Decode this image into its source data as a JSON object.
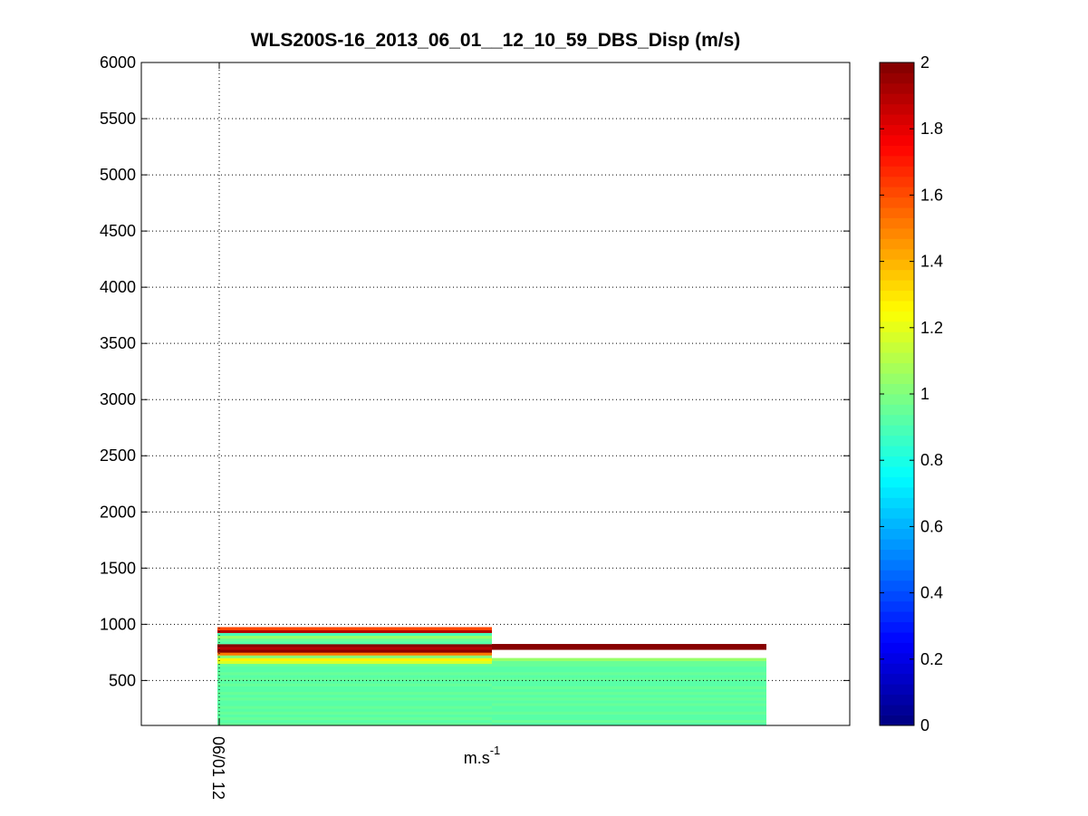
{
  "chart_data": {
    "type": "heatmap",
    "title": "WLS200S-16_2013_06_01__12_10_59_DBS_Disp (m/s)",
    "xlabel": "m.s",
    "xlabel_superscript": "-1",
    "ylabel": "",
    "x_tick_labels": [
      "06/01 12"
    ],
    "xlim": [
      0,
      2.28
    ],
    "y_ticks": [
      500,
      1000,
      1500,
      2000,
      2500,
      3000,
      3500,
      4000,
      4500,
      5000,
      5500,
      6000
    ],
    "ylim": [
      100,
      6000
    ],
    "grid": true,
    "colormap": "jet",
    "colorbar": {
      "clim": [
        0,
        2
      ],
      "ticks": [
        0,
        0.2,
        0.4,
        0.6,
        0.8,
        1,
        1.2,
        1.4,
        1.6,
        1.8,
        2
      ],
      "position": "right"
    },
    "columns": [
      {
        "x_range": [
          0,
          1
        ],
        "cells": [
          {
            "y": [
              100,
              125
            ],
            "value": 0.95
          },
          {
            "y": [
              125,
              150
            ],
            "value": 0.93
          },
          {
            "y": [
              150,
              175
            ],
            "value": 0.94
          },
          {
            "y": [
              175,
              200
            ],
            "value": 0.92
          },
          {
            "y": [
              200,
              225
            ],
            "value": 0.94
          },
          {
            "y": [
              225,
              250
            ],
            "value": 0.93
          },
          {
            "y": [
              250,
              275
            ],
            "value": 0.95
          },
          {
            "y": [
              275,
              300
            ],
            "value": 0.91
          },
          {
            "y": [
              300,
              325
            ],
            "value": 0.93
          },
          {
            "y": [
              325,
              350
            ],
            "value": 0.94
          },
          {
            "y": [
              350,
              375
            ],
            "value": 0.93
          },
          {
            "y": [
              375,
              400
            ],
            "value": 0.95
          },
          {
            "y": [
              400,
              425
            ],
            "value": 0.93
          },
          {
            "y": [
              425,
              450
            ],
            "value": 0.92
          },
          {
            "y": [
              450,
              475
            ],
            "value": 0.94
          },
          {
            "y": [
              475,
              500
            ],
            "value": 0.93
          },
          {
            "y": [
              500,
              525
            ],
            "value": 0.94
          },
          {
            "y": [
              525,
              550
            ],
            "value": 0.92
          },
          {
            "y": [
              550,
              575
            ],
            "value": 0.94
          },
          {
            "y": [
              575,
              600
            ],
            "value": 0.93
          },
          {
            "y": [
              600,
              625
            ],
            "value": 0.92
          },
          {
            "y": [
              625,
              650
            ],
            "value": 0.94
          },
          {
            "y": [
              650,
              675
            ],
            "value": 1.18
          },
          {
            "y": [
              675,
              700
            ],
            "value": 1.25
          },
          {
            "y": [
              700,
              725
            ],
            "value": 1.0
          },
          {
            "y": [
              725,
              750
            ],
            "value": 1.5
          },
          {
            "y": [
              750,
              775
            ],
            "value": 1.98
          },
          {
            "y": [
              775,
              800
            ],
            "value": 1.88
          },
          {
            "y": [
              800,
              825
            ],
            "value": 1.97
          },
          {
            "y": [
              825,
              850
            ],
            "value": 0.93
          },
          {
            "y": [
              850,
              875
            ],
            "value": 0.95
          },
          {
            "y": [
              875,
              900
            ],
            "value": 1.05
          },
          {
            "y": [
              900,
              925
            ],
            "value": 0.9
          },
          {
            "y": [
              925,
              950
            ],
            "value": 1.9
          },
          {
            "y": [
              950,
              975
            ],
            "value": 1.6
          }
        ]
      },
      {
        "x_range": [
          1,
          2
        ],
        "cells": [
          {
            "y": [
              100,
              125
            ],
            "value": 0.93
          },
          {
            "y": [
              125,
              150
            ],
            "value": 0.94
          },
          {
            "y": [
              150,
              175
            ],
            "value": 0.92
          },
          {
            "y": [
              175,
              200
            ],
            "value": 0.93
          },
          {
            "y": [
              200,
              225
            ],
            "value": 0.95
          },
          {
            "y": [
              225,
              250
            ],
            "value": 0.93
          },
          {
            "y": [
              250,
              275
            ],
            "value": 0.92
          },
          {
            "y": [
              275,
              300
            ],
            "value": 0.94
          },
          {
            "y": [
              300,
              325
            ],
            "value": 0.93
          },
          {
            "y": [
              325,
              350
            ],
            "value": 0.95
          },
          {
            "y": [
              350,
              375
            ],
            "value": 0.92
          },
          {
            "y": [
              375,
              400
            ],
            "value": 0.94
          },
          {
            "y": [
              400,
              425
            ],
            "value": 0.93
          },
          {
            "y": [
              425,
              450
            ],
            "value": 0.94
          },
          {
            "y": [
              450,
              475
            ],
            "value": 0.92
          },
          {
            "y": [
              475,
              500
            ],
            "value": 0.93
          },
          {
            "y": [
              500,
              525
            ],
            "value": 0.94
          },
          {
            "y": [
              525,
              550
            ],
            "value": 0.93
          },
          {
            "y": [
              550,
              575
            ],
            "value": 0.95
          },
          {
            "y": [
              575,
              600
            ],
            "value": 0.93
          },
          {
            "y": [
              600,
              625
            ],
            "value": 0.92
          },
          {
            "y": [
              625,
              650
            ],
            "value": 0.94
          },
          {
            "y": [
              650,
              675
            ],
            "value": 0.95
          },
          {
            "y": [
              675,
              700
            ],
            "value": 1.05
          },
          {
            "y": [
              775,
              825
            ],
            "value": 1.98
          }
        ]
      }
    ]
  }
}
